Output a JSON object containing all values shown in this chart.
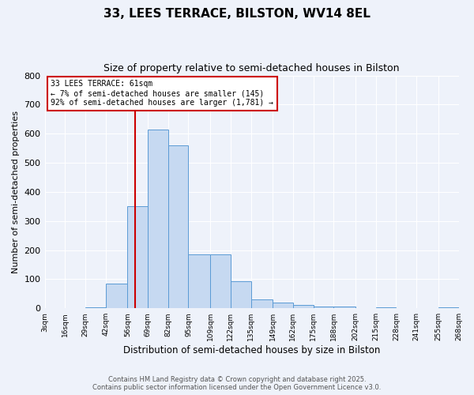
{
  "title": "33, LEES TERRACE, BILSTON, WV14 8EL",
  "subtitle": "Size of property relative to semi-detached houses in Bilston",
  "xlabel": "Distribution of semi-detached houses by size in Bilston",
  "ylabel": "Number of semi-detached properties",
  "bin_edges": [
    3,
    16,
    29,
    42,
    56,
    69,
    82,
    95,
    109,
    122,
    135,
    149,
    162,
    175,
    188,
    202,
    215,
    228,
    241,
    255,
    268
  ],
  "bar_heights": [
    0,
    0,
    2,
    85,
    350,
    615,
    560,
    185,
    185,
    92,
    30,
    20,
    12,
    5,
    5,
    0,
    4,
    0,
    0,
    3,
    0
  ],
  "bar_color": "#c6d9f1",
  "bar_edgecolor": "#5b9bd5",
  "redline_x": 61,
  "annotation_text": "33 LEES TERRACE: 61sqm\n← 7% of semi-detached houses are smaller (145)\n92% of semi-detached houses are larger (1,781) →",
  "annotation_box_color": "#ffffff",
  "annotation_box_edgecolor": "#cc0000",
  "redline_color": "#cc0000",
  "ylim": [
    0,
    800
  ],
  "yticks": [
    0,
    100,
    200,
    300,
    400,
    500,
    600,
    700,
    800
  ],
  "footer_line1": "Contains HM Land Registry data © Crown copyright and database right 2025.",
  "footer_line2": "Contains public sector information licensed under the Open Government Licence v3.0.",
  "background_color": "#eef2fa",
  "grid_color": "#ffffff",
  "title_fontsize": 11,
  "subtitle_fontsize": 9,
  "xlabel_fontsize": 8.5,
  "ylabel_fontsize": 8,
  "footer_fontsize": 6,
  "annotation_fontsize": 7,
  "xtick_fontsize": 6.5,
  "ytick_fontsize": 8
}
